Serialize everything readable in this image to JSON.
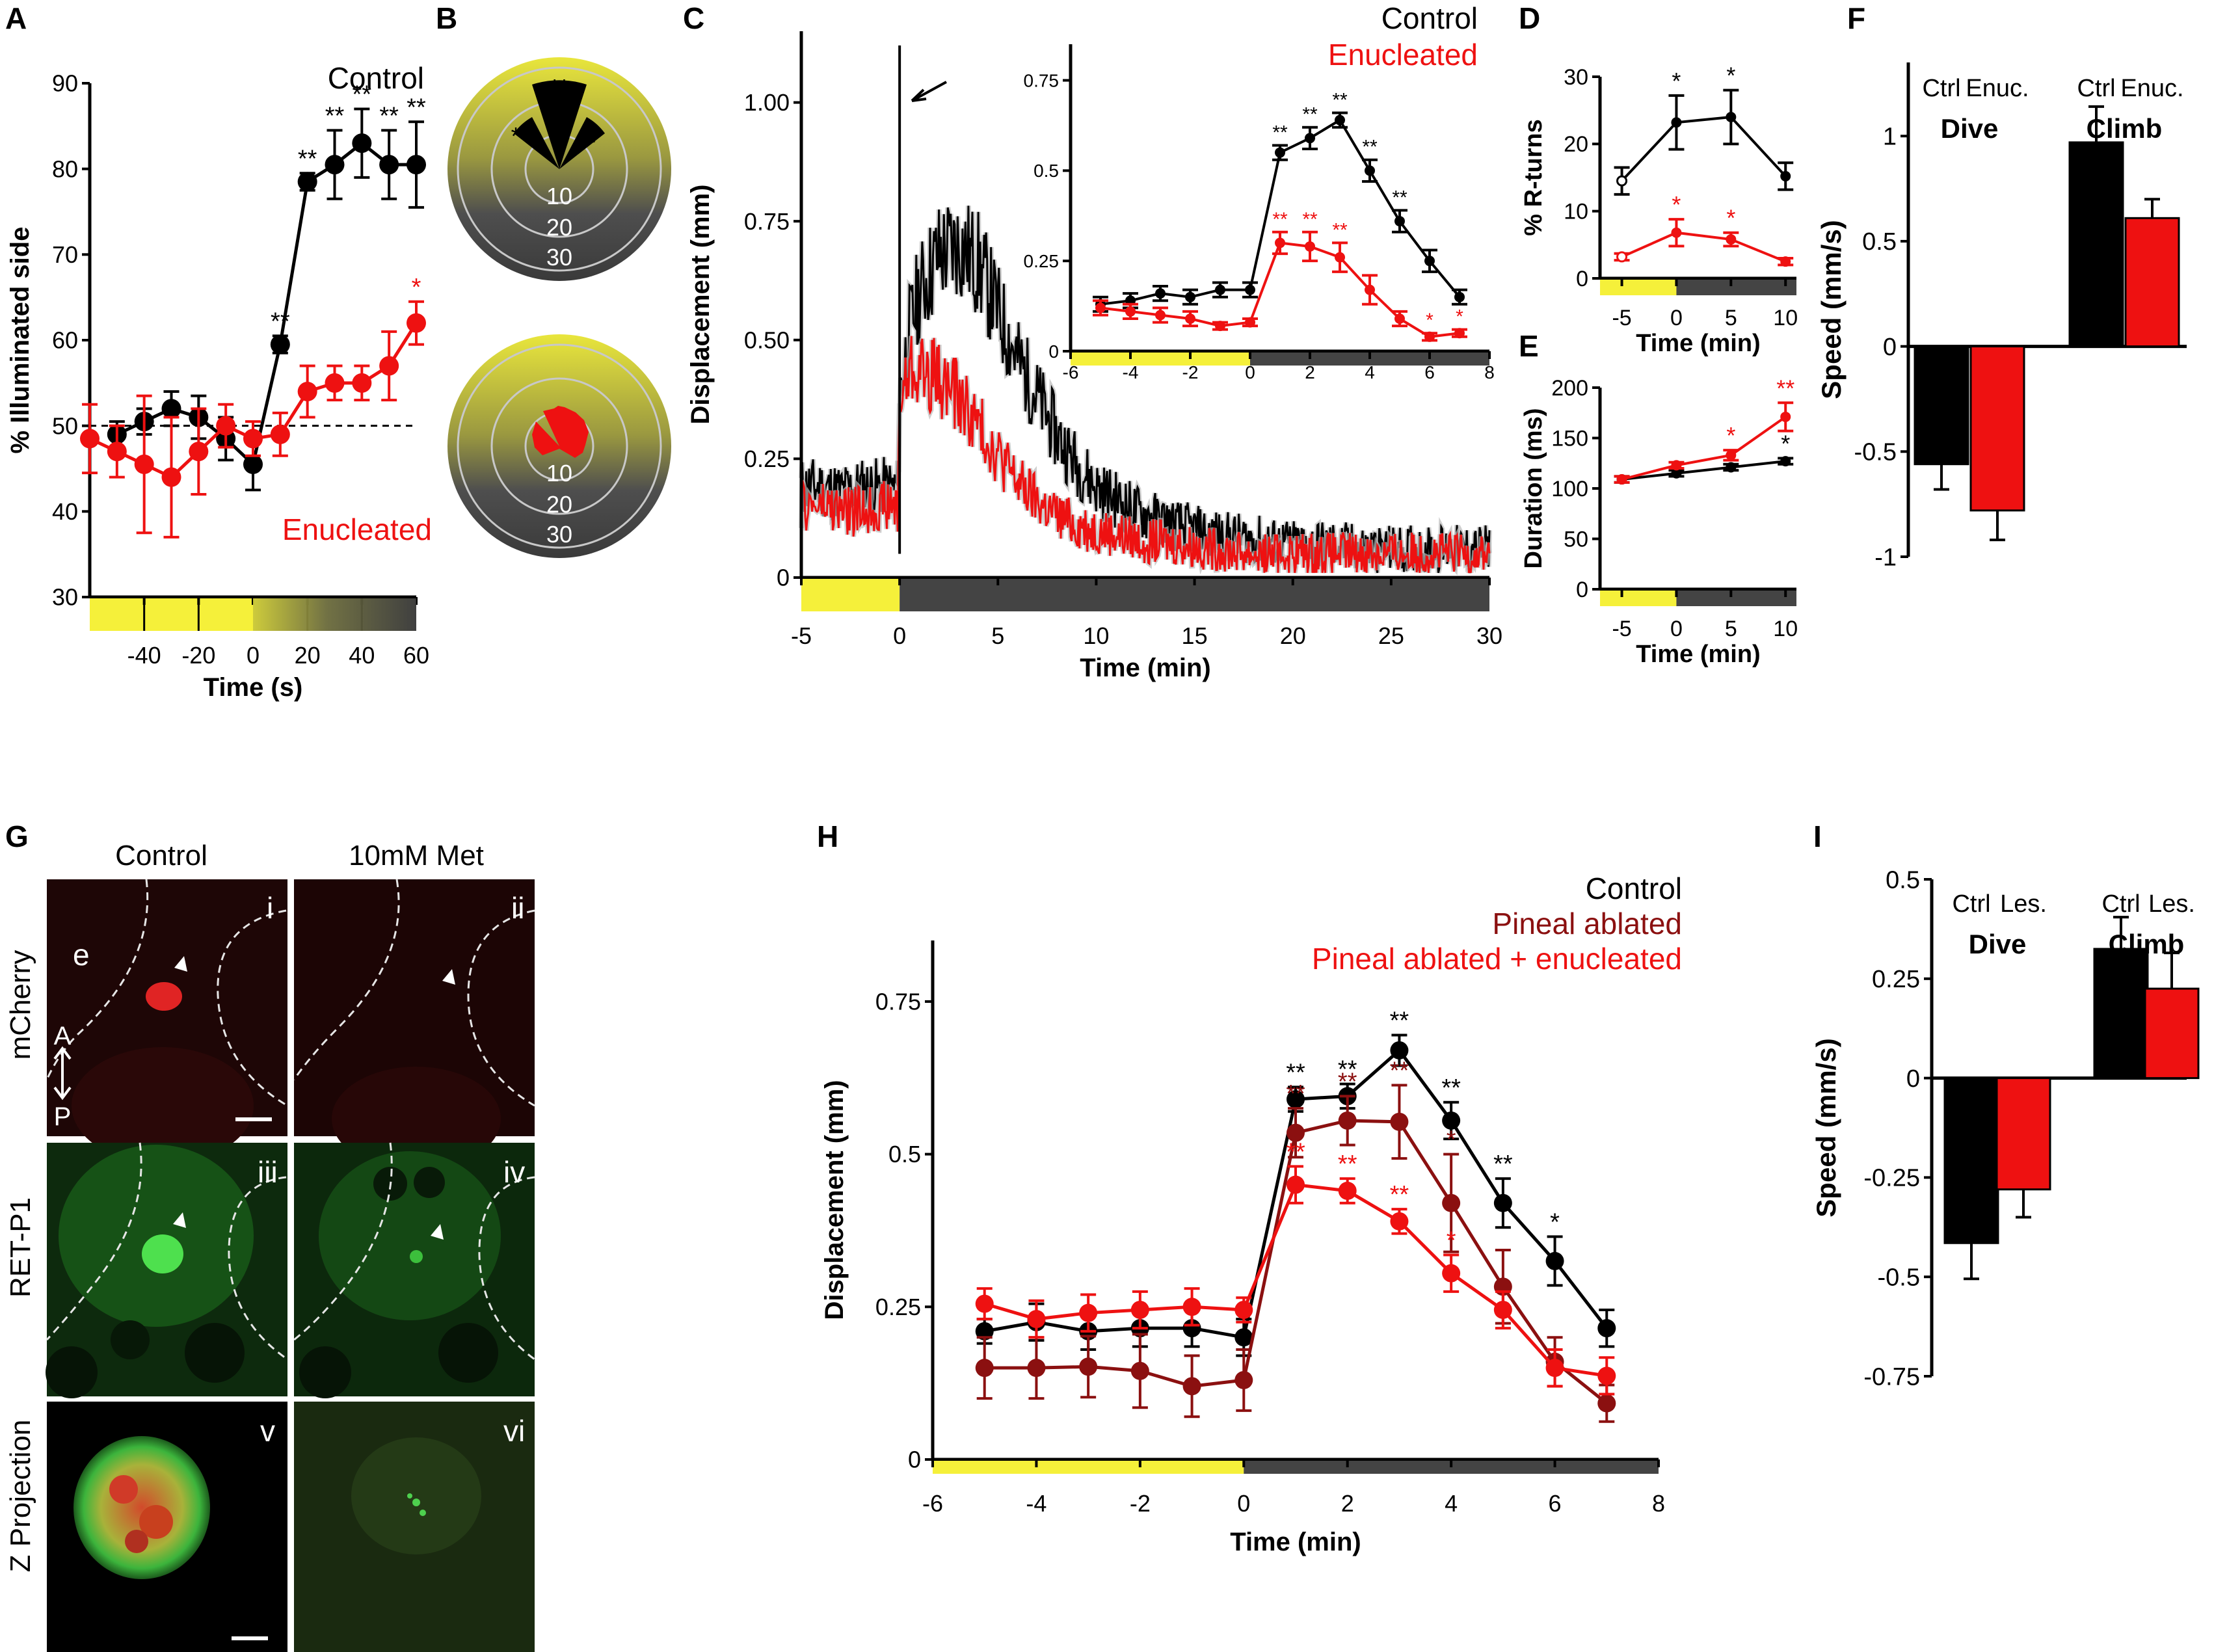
{
  "panel_letters": {
    "A": "A",
    "B": "B",
    "C": "C",
    "D": "D",
    "E": "E",
    "F": "F",
    "G": "G",
    "H": "H",
    "I": "I"
  },
  "colors": {
    "control": "#000000",
    "enucleated": "#ee1111",
    "pineal_ablated": "#8b1010",
    "light": "#f5f03a",
    "dark": "#444444",
    "yellow_bg": "#d8d640"
  },
  "chart_data": [
    {
      "panel": "A",
      "type": "line",
      "xlabel": "Time (s)",
      "ylabel": "% Illuminated side",
      "xlim": [
        -60,
        60
      ],
      "ylim": [
        30,
        90
      ],
      "xticks": [
        -40,
        -20,
        0,
        20,
        40,
        60
      ],
      "yticks": [
        30,
        40,
        50,
        60,
        70,
        80,
        90
      ],
      "reference_line": 50,
      "series": [
        {
          "name": "Control",
          "x": [
            -50,
            -40,
            -30,
            -20,
            -10,
            0,
            10,
            20,
            30,
            40,
            50,
            60
          ],
          "values": [
            49,
            50.5,
            52,
            51,
            48.5,
            45.5,
            59.5,
            78.5,
            80.5,
            83,
            80.5,
            80.5
          ],
          "err": [
            1.5,
            1.5,
            2,
            2.5,
            2.5,
            3,
            1,
            1,
            4,
            4,
            4,
            5
          ],
          "marks": [
            "",
            "",
            "",
            "",
            "",
            "",
            "**",
            "**",
            "**",
            "**",
            "**",
            "**"
          ]
        },
        {
          "name": "Enucleated",
          "x": [
            -60,
            -50,
            -40,
            -30,
            -20,
            -10,
            0,
            10,
            20,
            30,
            40,
            50,
            60
          ],
          "values": [
            48.5,
            47,
            45.5,
            44,
            47,
            50,
            48.5,
            49,
            54,
            55,
            55,
            57,
            62
          ],
          "err": [
            4,
            3,
            8,
            7,
            5,
            2.5,
            2,
            2.5,
            3,
            2,
            2,
            4,
            2.5
          ],
          "marks": [
            "",
            "",
            "",
            "",
            "",
            "",
            "",
            "",
            "",
            "",
            "",
            "",
            "*"
          ]
        }
      ]
    },
    {
      "panel": "B",
      "type": "polar",
      "rings": [
        "10",
        "20",
        "30"
      ],
      "marks": [
        "**",
        "*",
        "*"
      ]
    },
    {
      "panel": "C",
      "type": "line",
      "xlabel": "Time (min)",
      "ylabel": "Displacement (mm)",
      "xlim": [
        -5,
        30
      ],
      "ylim": [
        0,
        1.15
      ],
      "xticks": [
        -5,
        0,
        5,
        10,
        15,
        20,
        25,
        30
      ],
      "yticks": [
        0,
        0.25,
        0.5,
        0.75,
        1.0
      ],
      "ytick_labels": [
        "0",
        "0.25",
        "0.50",
        "0.75",
        "1.00"
      ],
      "legend": [
        "Control",
        "Enucleated"
      ],
      "series": [
        {
          "name": "Control",
          "x": [
            -5,
            -4,
            -3,
            -2,
            -1,
            -0.1,
            0,
            0.5,
            1,
            2,
            3,
            4,
            5,
            6,
            7,
            8,
            9,
            10,
            12,
            14,
            16,
            18,
            20,
            22,
            24,
            26,
            28,
            30
          ],
          "values": [
            0.19,
            0.19,
            0.18,
            0.19,
            0.19,
            0.19,
            0.38,
            0.52,
            0.6,
            0.68,
            0.7,
            0.66,
            0.56,
            0.46,
            0.38,
            0.3,
            0.24,
            0.19,
            0.14,
            0.11,
            0.09,
            0.08,
            0.07,
            0.07,
            0.06,
            0.06,
            0.06,
            0.06
          ]
        },
        {
          "name": "Enucleated",
          "x": [
            -5,
            -4,
            -3,
            -2,
            -1,
            -0.1,
            0,
            0.5,
            1,
            2,
            3,
            4,
            5,
            6,
            7,
            8,
            9,
            10,
            12,
            14,
            16,
            18,
            20,
            22,
            24,
            26,
            28,
            30
          ],
          "values": [
            0.15,
            0.15,
            0.14,
            0.14,
            0.15,
            0.15,
            0.36,
            0.44,
            0.44,
            0.42,
            0.38,
            0.32,
            0.26,
            0.2,
            0.16,
            0.13,
            0.11,
            0.1,
            0.08,
            0.07,
            0.06,
            0.05,
            0.05,
            0.05,
            0.05,
            0.05,
            0.05,
            0.05
          ]
        }
      ],
      "inset": {
        "xlim": [
          -6,
          8
        ],
        "ylim": [
          0,
          0.85
        ],
        "xticks": [
          -6,
          -4,
          -2,
          0,
          2,
          4,
          6,
          8
        ],
        "yticks": [
          0,
          0.25,
          0.5,
          0.75
        ],
        "ytick_labels": [
          "0",
          "0.25",
          "0.5",
          "0.75"
        ],
        "series": [
          {
            "name": "Control",
            "x": [
              -5,
              -4,
              -3,
              -2,
              -1,
              0,
              1,
              2,
              3,
              4,
              5,
              6,
              7
            ],
            "values": [
              0.13,
              0.14,
              0.16,
              0.15,
              0.17,
              0.17,
              0.55,
              0.59,
              0.64,
              0.5,
              0.36,
              0.25,
              0.15
            ],
            "err": [
              0.02,
              0.02,
              0.02,
              0.02,
              0.02,
              0.02,
              0.02,
              0.03,
              0.02,
              0.03,
              0.03,
              0.03,
              0.02
            ],
            "marks": [
              "",
              "",
              "",
              "",
              "",
              "",
              "**",
              "**",
              "**",
              "**",
              "**",
              "",
              ""
            ]
          },
          {
            "name": "Enucleated",
            "x": [
              -5,
              -4,
              -3,
              -2,
              -1,
              0,
              1,
              2,
              3,
              4,
              5,
              6,
              7
            ],
            "values": [
              0.12,
              0.11,
              0.1,
              0.09,
              0.07,
              0.08,
              0.3,
              0.29,
              0.26,
              0.17,
              0.09,
              0.04,
              0.05
            ],
            "err": [
              0.02,
              0.02,
              0.02,
              0.02,
              0.01,
              0.01,
              0.03,
              0.04,
              0.04,
              0.04,
              0.02,
              0.01,
              0.01
            ],
            "marks": [
              "",
              "",
              "",
              "",
              "",
              "",
              "**",
              "**",
              "**",
              "",
              "",
              "*",
              "*"
            ]
          }
        ]
      }
    },
    {
      "panel": "D",
      "type": "line",
      "xlabel": "Time (min)",
      "ylabel": "% R-turns",
      "xlim": [
        -7,
        11
      ],
      "ylim": [
        0,
        30
      ],
      "xticks": [
        -5,
        0,
        5,
        10
      ],
      "yticks": [
        0,
        10,
        20,
        30
      ],
      "series": [
        {
          "name": "Control",
          "x": [
            -5,
            0,
            5,
            10
          ],
          "values": [
            14.5,
            23.2,
            24,
            15.2
          ],
          "err": [
            2,
            4,
            4,
            2
          ],
          "marks": [
            "",
            "*",
            "*",
            ""
          ]
        },
        {
          "name": "Enucleated",
          "x": [
            -5,
            0,
            5,
            10
          ],
          "values": [
            3.2,
            6.8,
            5.8,
            2.5
          ],
          "err": [
            0.5,
            2,
            1,
            0.5
          ],
          "marks": [
            "",
            "*",
            "*",
            ""
          ]
        }
      ]
    },
    {
      "panel": "E",
      "type": "line",
      "xlabel": "Time (min)",
      "ylabel": "Duration (ms)",
      "xlim": [
        -7,
        11
      ],
      "ylim": [
        0,
        200
      ],
      "xticks": [
        -5,
        0,
        5,
        10
      ],
      "yticks": [
        0,
        50,
        100,
        150,
        200
      ],
      "series": [
        {
          "name": "Control",
          "x": [
            -5,
            0,
            5,
            10
          ],
          "values": [
            109,
            115,
            121,
            127
          ],
          "err": [
            3,
            3,
            3,
            3
          ],
          "marks": [
            "",
            "",
            "",
            "*"
          ]
        },
        {
          "name": "Enucleated",
          "x": [
            -5,
            0,
            5,
            10
          ],
          "values": [
            109,
            123,
            133,
            171
          ],
          "err": [
            3,
            3,
            5,
            14
          ],
          "marks": [
            "",
            "",
            "*",
            "**"
          ]
        }
      ]
    },
    {
      "panel": "F",
      "type": "bar",
      "ylabel": "Speed (mm/s)",
      "ylim": [
        -1,
        1.35
      ],
      "yticks": [
        -1,
        -0.5,
        0,
        0.5,
        1
      ],
      "ytick_labels": [
        "-1",
        "-0.5",
        "0",
        "0.5",
        "1"
      ],
      "groups": [
        "Dive",
        "Climb"
      ],
      "categories": [
        "Ctrl",
        "Enuc.",
        "Ctrl",
        "Enuc."
      ],
      "values": [
        -0.56,
        -0.78,
        0.97,
        0.61
      ],
      "err": [
        0.12,
        0.14,
        0.17,
        0.09
      ]
    },
    {
      "panel": "H",
      "type": "line",
      "xlabel": "Time (min)",
      "ylabel": "Displacement (mm)",
      "xlim": [
        -6,
        8
      ],
      "ylim": [
        0,
        0.85
      ],
      "xticks": [
        -6,
        -4,
        -2,
        0,
        2,
        4,
        6,
        8
      ],
      "yticks": [
        0,
        0.25,
        0.5,
        0.75
      ],
      "ytick_labels": [
        "0",
        "0.25",
        "0.5",
        "0.75"
      ],
      "legend": [
        "Control",
        "Pineal ablated",
        "Pineal ablated + enucleated"
      ],
      "series": [
        {
          "name": "Control",
          "x": [
            -5,
            -4,
            -3,
            -2,
            -1,
            0,
            1,
            2,
            3,
            4,
            5,
            6,
            7
          ],
          "values": [
            0.21,
            0.225,
            0.21,
            0.215,
            0.215,
            0.2,
            0.59,
            0.595,
            0.67,
            0.555,
            0.42,
            0.325,
            0.215
          ],
          "err": [
            0.02,
            0.03,
            0.03,
            0.03,
            0.03,
            0.03,
            0.02,
            0.02,
            0.025,
            0.03,
            0.04,
            0.04,
            0.03
          ],
          "marks": [
            "",
            "",
            "",
            "",
            "",
            "",
            "**",
            "**",
            "**",
            "**",
            "**",
            "*",
            ""
          ]
        },
        {
          "name": "Pineal ablated",
          "x": [
            -5,
            -4,
            -3,
            -2,
            -1,
            0,
            1,
            2,
            3,
            4,
            5,
            6,
            7
          ],
          "values": [
            0.15,
            0.15,
            0.152,
            0.145,
            0.12,
            0.13,
            0.535,
            0.555,
            0.553,
            0.42,
            0.283,
            0.16,
            0.092
          ],
          "err": [
            0.05,
            0.05,
            0.05,
            0.06,
            0.05,
            0.05,
            0.04,
            0.04,
            0.06,
            0.08,
            0.06,
            0.04,
            0.03
          ],
          "marks": [
            "",
            "",
            "",
            "",
            "",
            "",
            "**",
            "**",
            "**",
            "*",
            "",
            "",
            ""
          ]
        },
        {
          "name": "Pineal ablated + enucleated",
          "x": [
            -5,
            -4,
            -3,
            -2,
            -1,
            0,
            1,
            2,
            3,
            4,
            5,
            6,
            7
          ],
          "values": [
            0.255,
            0.23,
            0.24,
            0.245,
            0.25,
            0.245,
            0.45,
            0.44,
            0.39,
            0.305,
            0.245,
            0.15,
            0.137
          ],
          "err": [
            0.025,
            0.03,
            0.03,
            0.03,
            0.03,
            0.02,
            0.03,
            0.02,
            0.02,
            0.03,
            0.03,
            0.03,
            0.03
          ],
          "marks": [
            "",
            "",
            "",
            "",
            "",
            "",
            "**",
            "**",
            "**",
            "*",
            "",
            "",
            ""
          ]
        }
      ]
    },
    {
      "panel": "I",
      "type": "bar",
      "ylabel": "Speed (mm/s)",
      "ylim": [
        -0.75,
        0.5
      ],
      "yticks": [
        -0.75,
        -0.5,
        -0.25,
        0,
        0.25,
        0.5
      ],
      "ytick_labels": [
        "-0.75",
        "-0.5",
        "-0.25",
        "0",
        "0.25",
        "0.5"
      ],
      "groups": [
        "Dive",
        "Climb"
      ],
      "categories": [
        "Ctrl",
        "Les.",
        "Ctrl",
        "Les."
      ],
      "values": [
        -0.415,
        -0.28,
        0.325,
        0.225
      ],
      "err": [
        0.09,
        0.07,
        0.08,
        0.09
      ]
    }
  ],
  "panel_G": {
    "columns": [
      "Control",
      "10mM Met"
    ],
    "rows": [
      "mCherry",
      "RET-P1",
      "Z Projection"
    ],
    "sub_labels": [
      "i",
      "ii",
      "iii",
      "iv",
      "v",
      "vi"
    ],
    "eye_label": "e",
    "axis_A": "A",
    "axis_P": "P"
  }
}
